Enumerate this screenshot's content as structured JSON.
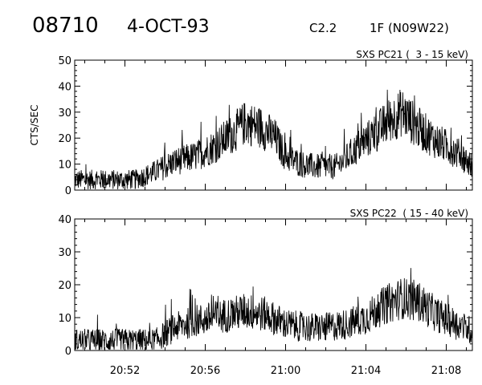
{
  "header": {
    "event_id": "08710",
    "date": "4-OCT-93",
    "goes_class": "C2.2",
    "flare_info": "1F (N09W22)"
  },
  "chart_data": [
    {
      "type": "line",
      "title": "SXS PC21 (  3 - 15 keV)",
      "xlabel": "",
      "ylabel": "CTS/SEC",
      "ylim": [
        0,
        50
      ],
      "yticks": [
        0,
        10,
        20,
        30,
        40,
        50
      ],
      "xlim_minutes": [
        -10.5,
        9.3
      ],
      "x_tick_labels": [
        "20:52",
        "20:56",
        "21:00",
        "21:04",
        "21:08"
      ],
      "series": [
        {
          "x_minutes": [
            -10.5,
            -9.0,
            -7.5,
            -6.5,
            -5.5,
            -4.5,
            -3.5,
            -2.6,
            -2.0,
            -1.2,
            -0.5,
            0.0,
            0.8,
            1.5,
            2.5,
            3.0,
            3.8,
            4.5,
            5.2,
            5.8,
            6.6,
            7.5,
            8.2,
            8.8,
            9.3
          ],
          "values": [
            4,
            4,
            4,
            7,
            11,
            13,
            17,
            22,
            26,
            24,
            20,
            13,
            10,
            9,
            9,
            12,
            18,
            22,
            27,
            30,
            24,
            19,
            16,
            13,
            9
          ]
        }
      ]
    },
    {
      "type": "line",
      "title": "SXS PC22  ( 15 - 40 keV)",
      "xlabel": "",
      "ylabel": "",
      "ylim": [
        0,
        40
      ],
      "yticks": [
        0,
        10,
        20,
        30,
        40
      ],
      "xlim_minutes": [
        -10.5,
        9.3
      ],
      "x_tick_labels": [
        "20:52",
        "20:56",
        "21:00",
        "21:04",
        "21:08"
      ],
      "series": [
        {
          "x_minutes": [
            -10.5,
            -8.0,
            -6.5,
            -5.5,
            -4.5,
            -3.5,
            -2.0,
            -1.0,
            0.0,
            1.0,
            2.0,
            3.0,
            4.0,
            5.0,
            5.8,
            6.6,
            7.5,
            8.5,
            9.3
          ],
          "values": [
            3,
            3,
            3,
            7,
            9,
            10,
            12,
            11,
            8,
            7,
            7,
            8,
            10,
            14,
            16,
            15,
            11,
            8,
            6
          ]
        }
      ]
    }
  ]
}
